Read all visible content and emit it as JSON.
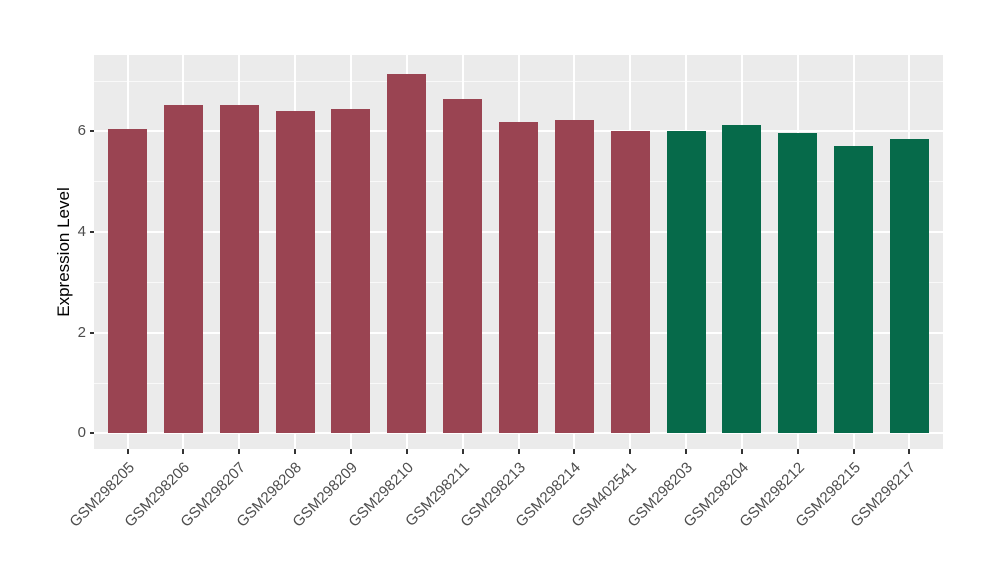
{
  "chart_data": {
    "type": "bar",
    "title": "",
    "xlabel": "",
    "ylabel": "Expression Level",
    "categories": [
      "GSM298205",
      "GSM298206",
      "GSM298207",
      "GSM298208",
      "GSM298209",
      "GSM298210",
      "GSM298211",
      "GSM298213",
      "GSM298214",
      "GSM402541",
      "GSM298203",
      "GSM298204",
      "GSM298212",
      "GSM298215",
      "GSM298217"
    ],
    "values": [
      6.04,
      6.52,
      6.52,
      6.4,
      6.45,
      7.15,
      6.65,
      6.18,
      6.22,
      6.01,
      6.0,
      6.13,
      5.97,
      5.71,
      5.86
    ],
    "bar_colors": [
      "#9A4452",
      "#9A4452",
      "#9A4452",
      "#9A4452",
      "#9A4452",
      "#9A4452",
      "#9A4452",
      "#9A4452",
      "#9A4452",
      "#9A4452",
      "#066A4A",
      "#066A4A",
      "#066A4A",
      "#066A4A",
      "#066A4A"
    ],
    "group_colors": {
      "left_group": "#9A4452",
      "right_group": "#066A4A"
    },
    "y_ticks": [
      0,
      2,
      4,
      6
    ],
    "y_tick_labels": [
      "0",
      "2",
      "4",
      "6"
    ],
    "y_minor_ticks": [
      1,
      3,
      5,
      7
    ],
    "ylim": [
      -0.31,
      7.52
    ],
    "x_label_angle": -45,
    "grid": true,
    "legend": "none",
    "panel_bg": "#EBEBEB",
    "grid_color": "#FFFFFF",
    "tick_label_color": "#4D4D4D",
    "axis_title_color": "#000000",
    "tick_mark_color": "#333333",
    "figure_bg": "#FFFFFF"
  }
}
